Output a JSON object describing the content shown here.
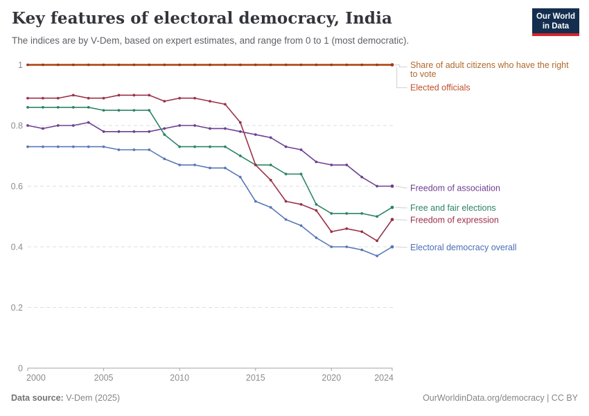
{
  "header": {
    "title": "Key features of electoral democracy, India",
    "subtitle": "The indices are by V-Dem, based on expert estimates, and range from 0 to 1 (most democratic)."
  },
  "logo": {
    "line1": "Our World",
    "line2": "in Data",
    "bg_color": "#132E4F",
    "bar_color": "#D8252B"
  },
  "footer": {
    "source_label": "Data source:",
    "source_value": "V-Dem (2025)",
    "right_text": "OurWorldinData.org/democracy | CC BY"
  },
  "chart_data": {
    "type": "line",
    "title": "Key features of electoral democracy, India",
    "xlabel": "",
    "ylabel": "",
    "xlim": [
      2000,
      2024
    ],
    "ylim": [
      0,
      1
    ],
    "grid": "horizontal-dashed",
    "legend_position": "right-end-labels",
    "grid_values": [
      0.2,
      0.4,
      0.6,
      0.8
    ],
    "y_ticks": [
      {
        "label": "1",
        "value": 1
      },
      {
        "label": "0.8",
        "value": 0.8
      },
      {
        "label": "0.6",
        "value": 0.6
      },
      {
        "label": "0.4",
        "value": 0.4
      },
      {
        "label": "0.2",
        "value": 0.2
      },
      {
        "label": "0",
        "value": 0
      }
    ],
    "x_ticks": [
      {
        "label": "2000",
        "year": 2000,
        "align": "start"
      },
      {
        "label": "2005",
        "year": 2005,
        "align": "middle"
      },
      {
        "label": "2010",
        "year": 2010,
        "align": "middle"
      },
      {
        "label": "2015",
        "year": 2015,
        "align": "middle"
      },
      {
        "label": "2020",
        "year": 2020,
        "align": "middle"
      },
      {
        "label": "2024",
        "year": 2024,
        "align": "end"
      }
    ],
    "x": [
      2000,
      2001,
      2002,
      2003,
      2004,
      2005,
      2006,
      2007,
      2008,
      2009,
      2010,
      2011,
      2012,
      2013,
      2014,
      2015,
      2016,
      2017,
      2018,
      2019,
      2020,
      2021,
      2022,
      2023,
      2024
    ],
    "series": [
      {
        "id": "suffrage",
        "name": "Share of adult citizens who have the right to vote",
        "color": "#B0692B",
        "width": 3,
        "points": false,
        "values": [
          1,
          1,
          1,
          1,
          1,
          1,
          1,
          1,
          1,
          1,
          1,
          1,
          1,
          1,
          1,
          1,
          1,
          1,
          1,
          1,
          1,
          1,
          1,
          1,
          1
        ],
        "label_lines": [
          "Share of adult citizens who have the right",
          "to vote"
        ],
        "label_ys": [
          98,
          111
        ],
        "connector": "bracket-top"
      },
      {
        "id": "elected",
        "name": "Elected officials",
        "color": "#C0502D",
        "point_color": "#9E3A20",
        "values": [
          1,
          1,
          1,
          1,
          1,
          1,
          1,
          1,
          1,
          1,
          1,
          1,
          1,
          1,
          1,
          1,
          1,
          1,
          1,
          1,
          1,
          1,
          1,
          1,
          1
        ],
        "label_lines": [
          "Elected officials"
        ],
        "label_ys": [
          130.5
        ],
        "connector": "bracket-bottom"
      },
      {
        "id": "overall",
        "name": "Electoral democracy overall",
        "color": "#5878B4",
        "label_color": "#4A6DB5",
        "values": [
          0.73,
          0.73,
          0.73,
          0.73,
          0.73,
          0.73,
          0.72,
          0.72,
          0.72,
          0.69,
          0.67,
          0.67,
          0.66,
          0.66,
          0.63,
          0.55,
          0.53,
          0.49,
          0.47,
          0.43,
          0.4,
          0.4,
          0.39,
          0.37,
          0.4
        ],
        "label_lines": [
          "Electoral democracy overall"
        ],
        "label_ys": [
          361
        ]
      },
      {
        "id": "association",
        "name": "Freedom of association",
        "color": "#6D3E91",
        "values": [
          0.8,
          0.79,
          0.8,
          0.8,
          0.81,
          0.78,
          0.78,
          0.78,
          0.78,
          0.79,
          0.8,
          0.8,
          0.79,
          0.79,
          0.78,
          0.77,
          0.76,
          0.73,
          0.72,
          0.68,
          0.67,
          0.67,
          0.63,
          0.6,
          0.6
        ],
        "label_lines": [
          "Freedom of association"
        ],
        "label_ys": [
          275.5
        ]
      },
      {
        "id": "free_fair",
        "name": "Free and fair elections",
        "color": "#2C8465",
        "values": [
          0.86,
          0.86,
          0.86,
          0.86,
          0.86,
          0.85,
          0.85,
          0.85,
          0.85,
          0.77,
          0.73,
          0.73,
          0.73,
          0.73,
          0.7,
          0.67,
          0.67,
          0.64,
          0.64,
          0.54,
          0.51,
          0.51,
          0.51,
          0.5,
          0.53
        ],
        "label_lines": [
          "Free and fair elections"
        ],
        "label_ys": [
          304
        ]
      },
      {
        "id": "expression",
        "name": "Freedom of expression",
        "color": "#9A3046",
        "values": [
          0.89,
          0.89,
          0.89,
          0.9,
          0.89,
          0.89,
          0.9,
          0.9,
          0.9,
          0.88,
          0.89,
          0.89,
          0.88,
          0.87,
          0.81,
          0.67,
          0.62,
          0.55,
          0.54,
          0.52,
          0.45,
          0.46,
          0.45,
          0.42,
          0.49
        ],
        "label_lines": [
          "Freedom of expression"
        ],
        "label_ys": [
          321.5
        ]
      }
    ]
  }
}
